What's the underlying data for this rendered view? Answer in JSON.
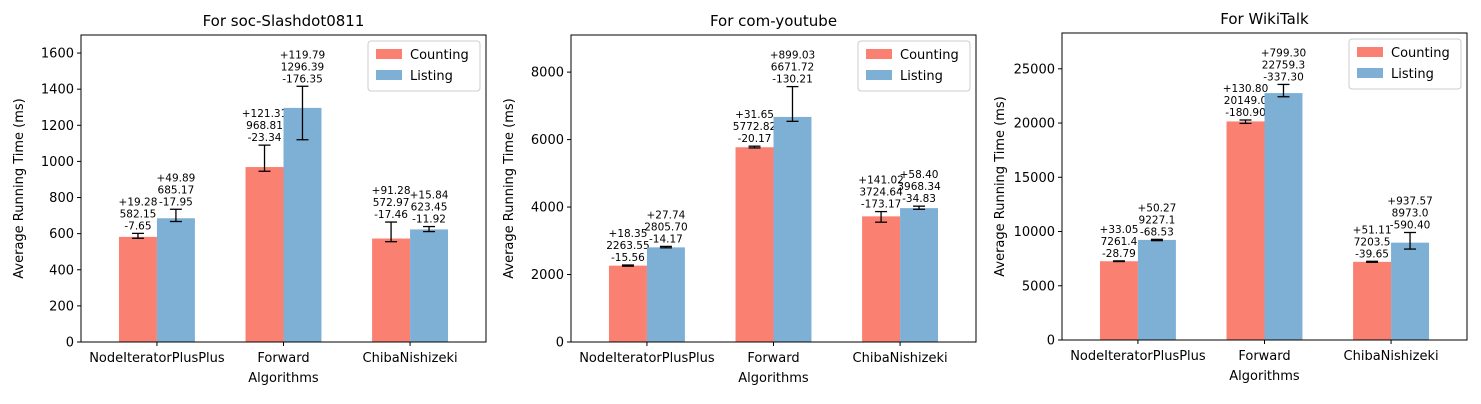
{
  "chart_data": [
    {
      "type": "bar",
      "title": "For soc-Slashdot0811",
      "xlabel": "Algorithms",
      "ylabel": "Average Running Time (ms)",
      "ylim": [
        0,
        1700
      ],
      "yticks": [
        0,
        200,
        400,
        600,
        800,
        1000,
        1200,
        1400,
        1600
      ],
      "ytick_labels": [
        "0",
        "200",
        "400",
        "600",
        "800",
        "1000",
        "1200",
        "1400",
        "1600"
      ],
      "categories": [
        "NodeIteratorPlusPlus",
        "Forward",
        "ChibaNishizeki"
      ],
      "legend": {
        "position": "top-right",
        "entries": [
          "Counting",
          "Listing"
        ]
      },
      "series": [
        {
          "name": "Counting",
          "color": "#fa8072",
          "values": [
            582.15,
            968.81,
            572.97
          ],
          "err_plus": [
            19.28,
            121.31,
            91.28
          ],
          "err_minus": [
            7.65,
            23.34,
            17.46
          ],
          "value_labels": [
            "582.15",
            "968.81",
            "572.97"
          ],
          "plus_labels": [
            "+19.28",
            "+121.31",
            "+91.28"
          ],
          "minus_labels": [
            "-7.65",
            "-23.34",
            "-17.46"
          ]
        },
        {
          "name": "Listing",
          "color": "#7eb0d5",
          "values": [
            685.17,
            1296.39,
            623.45
          ],
          "err_plus": [
            49.89,
            119.79,
            15.84
          ],
          "err_minus": [
            17.95,
            176.35,
            11.92
          ],
          "value_labels": [
            "685.17",
            "1296.39",
            "623.45"
          ],
          "plus_labels": [
            "+49.89",
            "+119.79",
            "+15.84"
          ],
          "minus_labels": [
            "-17.95",
            "-176.35",
            "-11.92"
          ]
        }
      ]
    },
    {
      "type": "bar",
      "title": "For com-youtube",
      "xlabel": "Algorithms",
      "ylabel": "Average Running Time (ms)",
      "ylim": [
        0,
        9100
      ],
      "yticks": [
        0,
        2000,
        4000,
        6000,
        8000
      ],
      "ytick_labels": [
        "0",
        "2000",
        "4000",
        "6000",
        "8000"
      ],
      "categories": [
        "NodeIteratorPlusPlus",
        "Forward",
        "ChibaNishizeki"
      ],
      "legend": {
        "position": "top-right",
        "entries": [
          "Counting",
          "Listing"
        ]
      },
      "series": [
        {
          "name": "Counting",
          "color": "#fa8072",
          "values": [
            2263.55,
            5772.82,
            3724.64
          ],
          "err_plus": [
            18.35,
            31.65,
            141.02
          ],
          "err_minus": [
            15.56,
            20.17,
            173.17
          ],
          "value_labels": [
            "2263.55",
            "5772.82",
            "3724.64"
          ],
          "plus_labels": [
            "+18.35",
            "+31.65",
            "+141.02"
          ],
          "minus_labels": [
            "-15.56",
            "-20.17",
            "-173.17"
          ]
        },
        {
          "name": "Listing",
          "color": "#7eb0d5",
          "values": [
            2805.7,
            6671.72,
            3968.34
          ],
          "err_plus": [
            27.74,
            899.03,
            58.4
          ],
          "err_minus": [
            14.17,
            130.21,
            34.83
          ],
          "value_labels": [
            "2805.70",
            "6671.72",
            "3968.34"
          ],
          "plus_labels": [
            "+27.74",
            "+899.03",
            "+58.40"
          ],
          "minus_labels": [
            "-14.17",
            "-130.21",
            "-34.83"
          ]
        }
      ]
    },
    {
      "type": "bar",
      "title": "For WikiTalk",
      "xlabel": "Algorithms",
      "ylabel": "Average Running Time (ms)",
      "ylim": [
        0,
        28300
      ],
      "yticks": [
        0,
        5000,
        10000,
        15000,
        20000,
        25000
      ],
      "ytick_labels": [
        "0",
        "5000",
        "10000",
        "15000",
        "20000",
        "25000"
      ],
      "categories": [
        "NodeIteratorPlusPlus",
        "Forward",
        "ChibaNishizeki"
      ],
      "legend": {
        "position": "top-right",
        "entries": [
          "Counting",
          "Listing"
        ]
      },
      "series": [
        {
          "name": "Counting",
          "color": "#fa8072",
          "values": [
            7261.4,
            20149.0,
            7203.5
          ],
          "err_plus": [
            33.05,
            130.8,
            51.11
          ],
          "err_minus": [
            28.79,
            180.9,
            39.65
          ],
          "value_labels": [
            "7261.4",
            "20149.0",
            "7203.5"
          ],
          "plus_labels": [
            "+33.05",
            "+130.80",
            "+51.11"
          ],
          "minus_labels": [
            "-28.79",
            "-180.90",
            "-39.65"
          ]
        },
        {
          "name": "Listing",
          "color": "#7eb0d5",
          "values": [
            9227.1,
            22759.3,
            8973.0
          ],
          "err_plus": [
            50.27,
            799.3,
            937.57
          ],
          "err_minus": [
            68.53,
            337.3,
            590.4
          ],
          "value_labels": [
            "9227.1",
            "22759.3",
            "8973.0"
          ],
          "plus_labels": [
            "+50.27",
            "+799.30",
            "+937.57"
          ],
          "minus_labels": [
            "-68.53",
            "-337.30",
            "-590.40"
          ]
        }
      ]
    }
  ]
}
